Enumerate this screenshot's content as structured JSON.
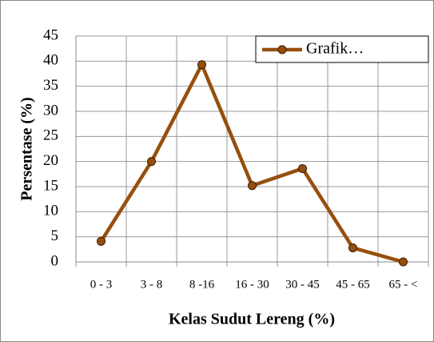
{
  "chart_data": {
    "type": "line",
    "x_label": "Kelas Sudut Lereng (%)",
    "y_label": "Persentase (%)",
    "categories": [
      "0 - 3",
      "3 - 8",
      "8 -16",
      "16 - 30",
      "30 - 45",
      "45 - 65",
      "65 - <"
    ],
    "series": [
      {
        "name": "Grafik…",
        "color": "#954f0d",
        "values": [
          4.1,
          20,
          39.3,
          15.2,
          18.6,
          2.8,
          0
        ]
      }
    ],
    "ylim": [
      0,
      45
    ],
    "yticks": [
      0,
      5,
      10,
      15,
      20,
      25,
      30,
      35,
      40,
      45
    ],
    "grid": true,
    "legend": "top-right"
  }
}
